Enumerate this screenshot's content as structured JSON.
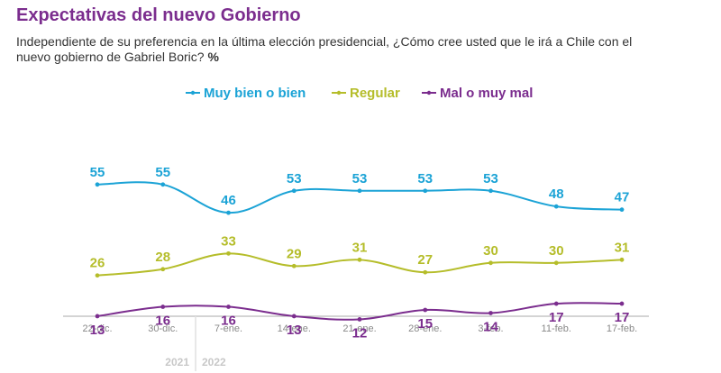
{
  "title": "Expectativas del nuevo Gobierno",
  "subtitle": "Independiente de su preferencia en la última elección presidencial, ¿Cómo cree usted que le irá a Chile con el nuevo gobierno de Gabriel Boric?",
  "unit": "%",
  "chart_data": {
    "type": "line",
    "categories": [
      "22-dic.",
      "30-dic.",
      "7-ene.",
      "14-ene.",
      "21-ene.",
      "28-ene.",
      "3-feb.",
      "11-feb.",
      "17-feb."
    ],
    "series": [
      {
        "name": "Muy bien o bien",
        "color": "#1ba3d6",
        "values": [
          55,
          55,
          46,
          53,
          53,
          53,
          53,
          48,
          47
        ]
      },
      {
        "name": "Regular",
        "color": "#b5bd2a",
        "values": [
          26,
          28,
          33,
          29,
          31,
          27,
          30,
          30,
          31
        ]
      },
      {
        "name": "Mal o muy mal",
        "color": "#7b2d8e",
        "values": [
          13,
          16,
          16,
          13,
          12,
          15,
          14,
          17,
          17
        ]
      }
    ],
    "year_labels": [
      "2021",
      "2022"
    ],
    "legend_position": "top-center",
    "grid": false
  }
}
